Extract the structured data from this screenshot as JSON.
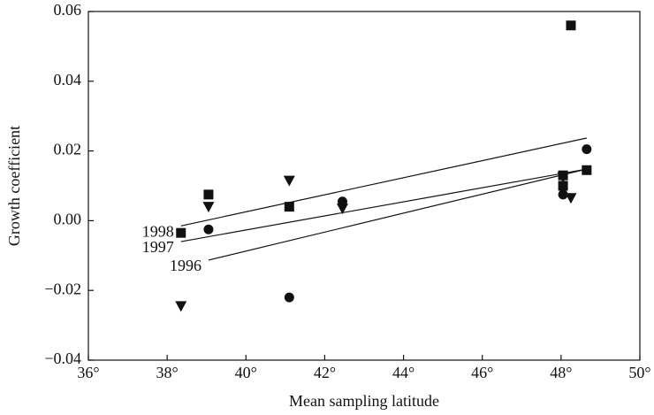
{
  "chart_data": {
    "type": "scatter",
    "xlabel": "Mean sampling latitude",
    "ylabel": "Growth coefficient",
    "xlim": [
      36,
      50
    ],
    "ylim": [
      -0.04,
      0.06
    ],
    "xticks": [
      {
        "value": 36,
        "label": "36°"
      },
      {
        "value": 38,
        "label": "38°"
      },
      {
        "value": 40,
        "label": "40°"
      },
      {
        "value": 42,
        "label": "42°"
      },
      {
        "value": 44,
        "label": "44°"
      },
      {
        "value": 46,
        "label": "46°"
      },
      {
        "value": 48,
        "label": "48°"
      },
      {
        "value": 50,
        "label": "50°"
      }
    ],
    "yticks": [
      {
        "value": -0.04,
        "label": "−0.04"
      },
      {
        "value": -0.02,
        "label": "−0.02"
      },
      {
        "value": 0,
        "label": "0.00"
      },
      0.02,
      0.04,
      0.06
    ],
    "series": [
      {
        "marker": "square",
        "color": "#111111",
        "x": [
          38.35,
          39.05,
          41.1,
          48.05,
          48.05,
          48.25,
          48.65
        ],
        "values": [
          -0.0035,
          0.0075,
          0.004,
          0.013,
          0.01,
          0.056,
          0.0145
        ]
      },
      {
        "marker": "circle",
        "color": "#111111",
        "x": [
          39.05,
          41.1,
          42.45,
          48.05,
          48.65
        ],
        "values": [
          -0.0025,
          -0.022,
          0.0055,
          0.0075,
          0.0205
        ]
      },
      {
        "marker": "triangle-down",
        "color": "#111111",
        "x": [
          38.35,
          39.05,
          41.1,
          42.45,
          48.05,
          48.25
        ],
        "values": [
          -0.0245,
          0.004,
          0.0115,
          0.0035,
          0.0125,
          0.0065
        ]
      }
    ],
    "fit_lines": [
      {
        "label": "1998",
        "x": [
          38.35,
          48.65
        ],
        "values": [
          -0.0015,
          0.0237
        ]
      },
      {
        "label": "1997",
        "x": [
          38.35,
          48.65
        ],
        "values": [
          -0.006,
          0.0148
        ]
      },
      {
        "label": "1996",
        "x": [
          39.05,
          48.65
        ],
        "values": [
          -0.0113,
          0.0148
        ]
      }
    ]
  }
}
